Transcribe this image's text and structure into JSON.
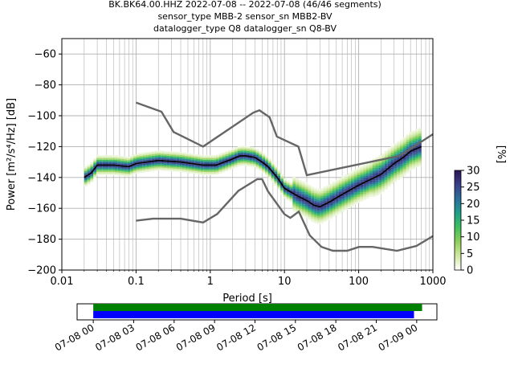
{
  "figure": {
    "title_lines": [
      "BK.BK64.00.HHZ   2022-07-08 -- 2022-07-08  (46/46 segments)",
      "sensor_type MBB-2 sensor_sn MBB2-BV",
      "datalogger_type Q8 datalogger_sn Q8-BV"
    ]
  },
  "chart_data": [
    {
      "type": "heatmap",
      "subtype": "probabilistic-power-spectral-density",
      "xlabel": "Period [s]",
      "ylabel": "Power [m²/s⁴/Hz] [dB]",
      "x_scale": "log",
      "xlim": [
        0.01,
        1000
      ],
      "ylim": [
        -200,
        -50
      ],
      "x_ticks": [
        0.01,
        0.1,
        1,
        10,
        100,
        1000
      ],
      "x_tick_labels": [
        "0.01",
        "0.1",
        "1",
        "10",
        "100",
        "1000"
      ],
      "y_ticks": [
        -200,
        -180,
        -160,
        -140,
        -120,
        -100,
        -80,
        -60
      ],
      "y_tick_labels": [
        "−200",
        "−180",
        "−160",
        "−140",
        "−120",
        "−100",
        "−80",
        "−60"
      ],
      "grid": true,
      "colorbar": {
        "label": "[%]",
        "range": [
          0,
          30
        ],
        "ticks": [
          0,
          5,
          10,
          15,
          20,
          25,
          30
        ],
        "colormap": [
          "#ffffff",
          "#cfe8a0",
          "#8ecf5a",
          "#3fbf5c",
          "#1f9f8a",
          "#2a6f9a",
          "#3a3f8a",
          "#2b1455"
        ]
      },
      "series": [
        {
          "name": "",
          "role": "mode/mean curve",
          "color": "#000000",
          "x": [
            0.02,
            0.025,
            0.03,
            0.05,
            0.08,
            0.1,
            0.2,
            0.4,
            0.8,
            1.2,
            2,
            2.5,
            3,
            4,
            5,
            6,
            8,
            10,
            15,
            20,
            25,
            30,
            40,
            60,
            100,
            200,
            300,
            400,
            500,
            700
          ],
          "y": [
            -140,
            -137,
            -132,
            -132,
            -133,
            -131,
            -129,
            -130,
            -132,
            -132,
            -128,
            -126,
            -126,
            -127,
            -130,
            -133,
            -140,
            -147,
            -152,
            -155,
            -158,
            -159,
            -156,
            -151,
            -145,
            -138,
            -131,
            -127,
            -123,
            -120
          ]
        },
        {
          "name": "",
          "role": "new high noise model",
          "color": "#666666",
          "x": [
            0.1,
            0.22,
            0.32,
            0.8,
            3.8,
            4.6,
            6.3,
            7.9,
            15.4,
            20,
            354.8,
            1000
          ],
          "y": [
            -91.5,
            -97.4,
            -110.5,
            -120,
            -98,
            -96.5,
            -101,
            -113.5,
            -120,
            -138.5,
            -126,
            -112
          ]
        },
        {
          "name": "",
          "role": "new low noise model",
          "color": "#666666",
          "x": [
            0.1,
            0.17,
            0.4,
            0.8,
            1.24,
            2.4,
            4.3,
            5,
            6,
            10,
            12,
            15.6,
            21.9,
            31.6,
            45,
            70,
            101,
            154,
            328,
            600,
            1000
          ],
          "y": [
            -168,
            -166.7,
            -166.7,
            -169.2,
            -163.7,
            -148.6,
            -141.1,
            -141.1,
            -149,
            -163.8,
            -166.2,
            -162.1,
            -177.5,
            -185,
            -187.5,
            -187.5,
            -185,
            -185,
            -187.5,
            -184.4,
            -178
          ]
        }
      ]
    },
    {
      "type": "timeline",
      "x_tick_labels": [
        "07-08 00",
        "07-08 03",
        "07-08 06",
        "07-08 09",
        "07-08 12",
        "07-08 15",
        "07-08 18",
        "07-08 21",
        "07-09 00"
      ],
      "bars": [
        {
          "name": "",
          "color": "#008000",
          "start_hours": 0,
          "end_hours": 24.4
        },
        {
          "name": "",
          "color": "#0000ff",
          "start_hours": 0,
          "end_hours": 23.8
        }
      ],
      "xlim_hours": [
        -1.2,
        25.5
      ]
    }
  ]
}
